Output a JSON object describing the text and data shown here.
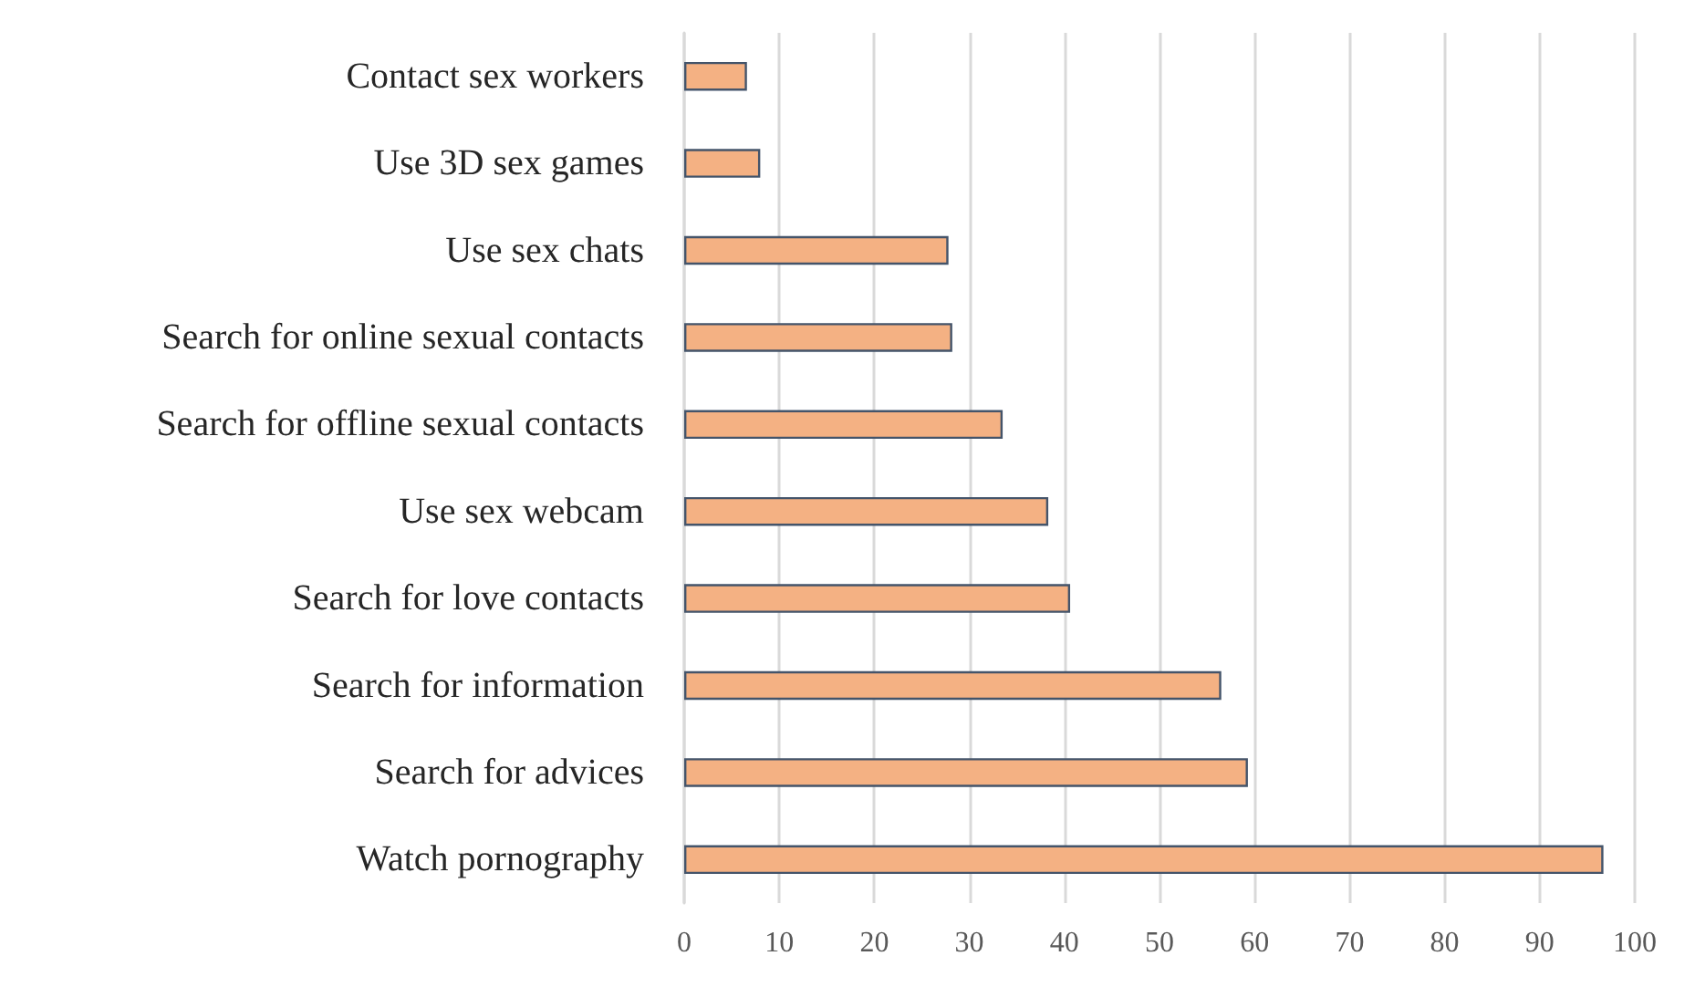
{
  "chart_data": {
    "type": "bar",
    "orientation": "horizontal",
    "categories": [
      "Contact sex workers",
      "Use 3D sex games",
      "Use sex chats",
      "Search for online sexual contacts",
      "Search for offline sexual contacts",
      "Use sex webcam",
      "Search for love contacts",
      "Search for information",
      "Search for advices",
      "Watch pornography"
    ],
    "values": [
      6.6,
      8.0,
      27.8,
      28.2,
      33.5,
      38.3,
      40.6,
      56.5,
      59.3,
      96.7
    ],
    "color": "#f4b183",
    "xlim": [
      0,
      100
    ],
    "xticks": [
      0,
      10,
      20,
      30,
      40,
      50,
      60,
      70,
      80,
      90,
      100
    ],
    "grid": "x"
  }
}
